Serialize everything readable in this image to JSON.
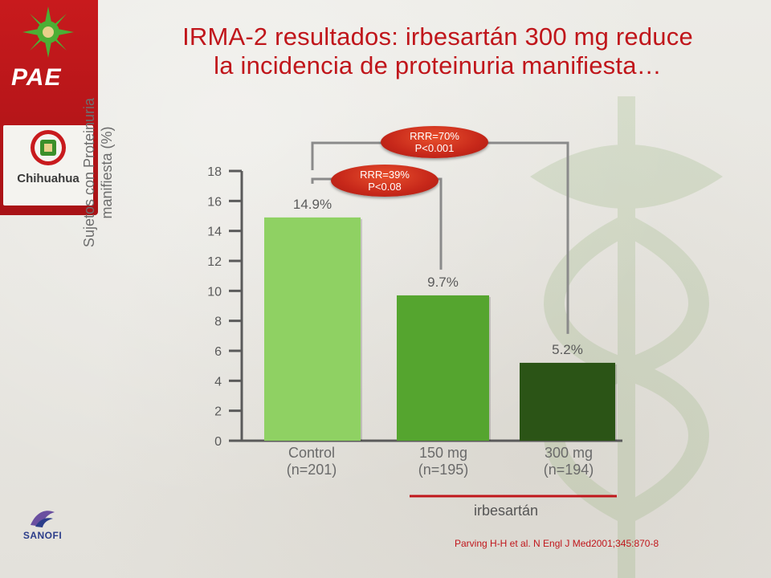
{
  "title": {
    "line1": "IRMA-2 resultados: irbesartán 300 mg reduce",
    "line2": "la incidencia de proteinuria manifiesta…"
  },
  "logos": {
    "pae": "PAE",
    "chihuahua": "Chihuahua",
    "sanofi": "SANOFI"
  },
  "chart_data": {
    "type": "bar",
    "categories": [
      "Control\n(n=201)",
      "150 mg\n(n=195)",
      "300 mg\n(n=194)"
    ],
    "category_lines": [
      [
        "Control",
        "(n=201)"
      ],
      [
        "150 mg",
        "(n=195)"
      ],
      [
        "300 mg",
        "(n=194)"
      ]
    ],
    "values": [
      14.9,
      9.7,
      5.2
    ],
    "data_labels": [
      "14.9%",
      "9.7%",
      "5.2%"
    ],
    "bar_colors": [
      "#8fd163",
      "#55a52f",
      "#2b5416"
    ],
    "ylabel_lines": [
      "Sujetos con Proteinuria",
      "manifiesta (%)"
    ],
    "yticks": [
      0,
      2,
      4,
      6,
      8,
      10,
      12,
      14,
      16,
      18
    ],
    "ylim": [
      0,
      18
    ],
    "grid": false,
    "group_label": "irbesartán",
    "comparisons": [
      {
        "from": 0,
        "to": 1,
        "lines": [
          "RRR=39%",
          "P<0.08"
        ]
      },
      {
        "from": 0,
        "to": 2,
        "lines": [
          "RRR=70%",
          "P<0.001"
        ]
      }
    ]
  },
  "citation": "Parving H-H et al. N Engl J Med2001;345:870-8",
  "colors": {
    "title": "#c0161b",
    "axis": "#5a5a5a",
    "bracket": "#8a8a8a",
    "group_line": "#c0161b"
  }
}
